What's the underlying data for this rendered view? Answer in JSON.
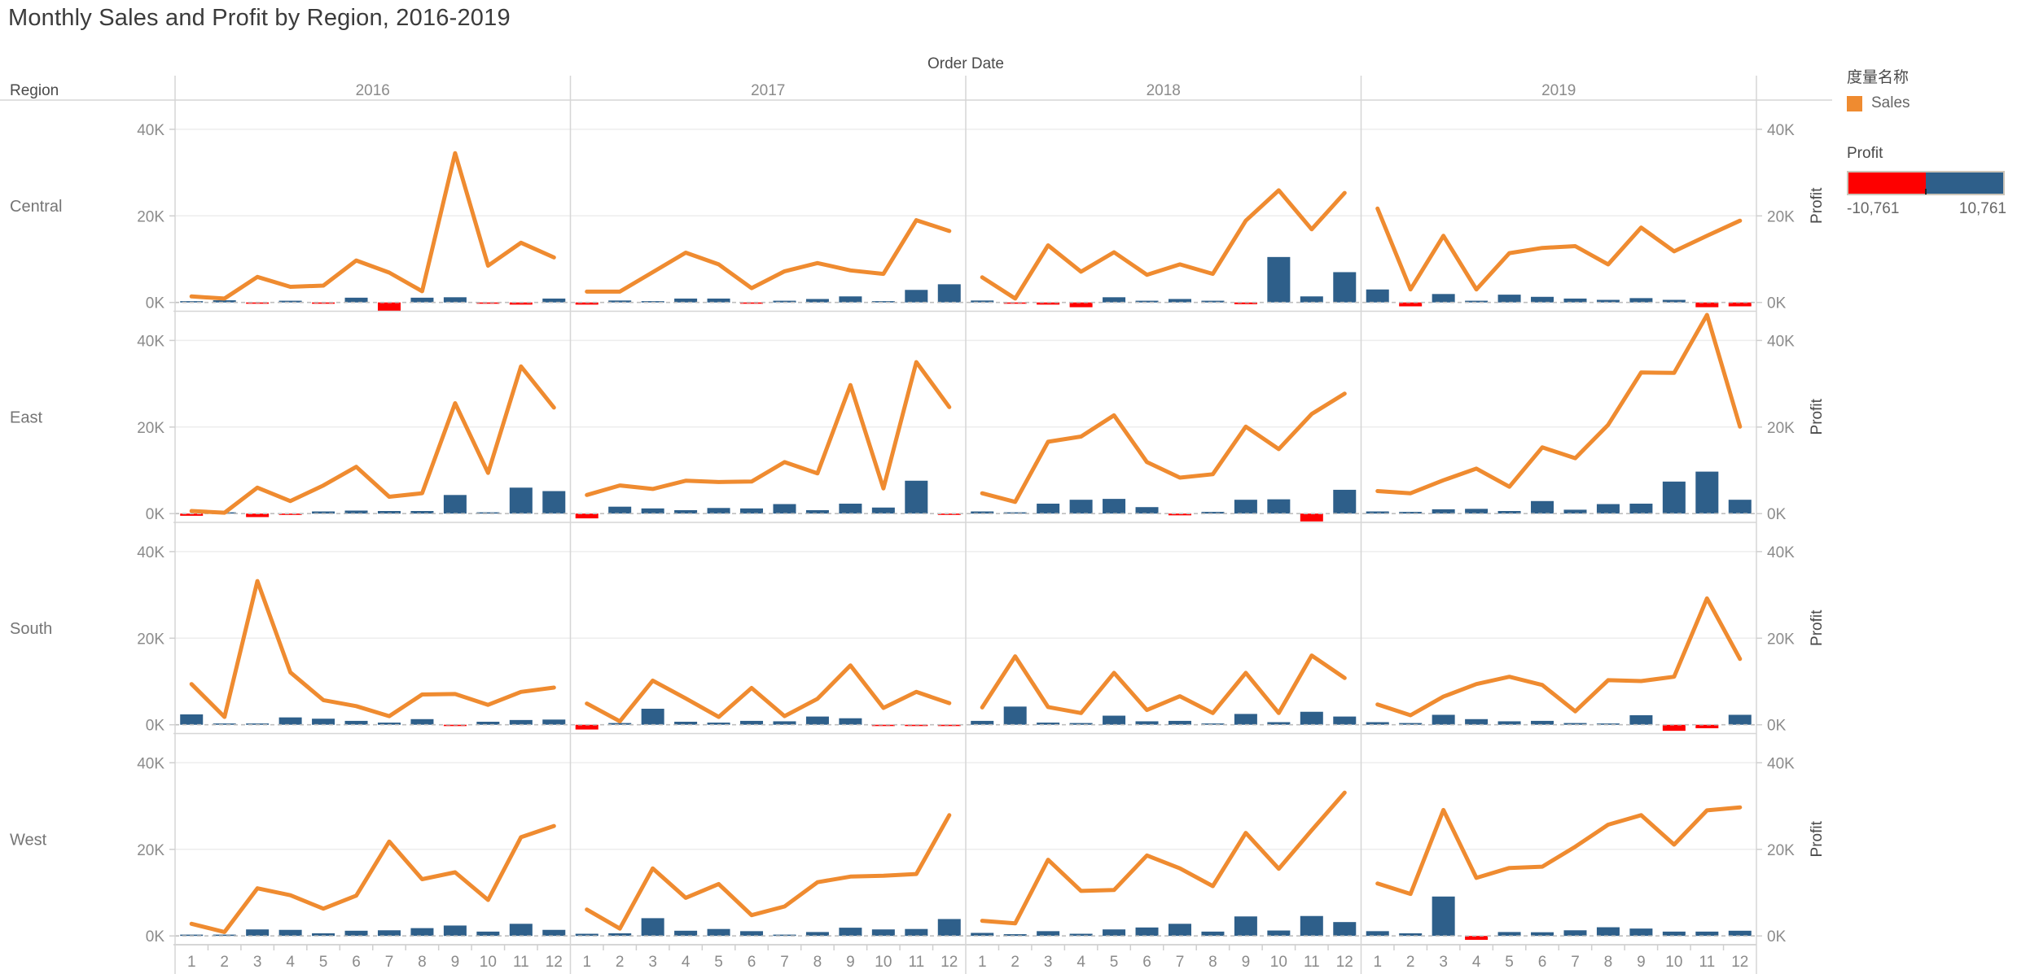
{
  "title": "Monthly Sales and Profit by Region, 2016-2019",
  "legend": {
    "measure_names_title": "度量名称",
    "sales_label": "Sales",
    "profit_title": "Profit",
    "profit_min_label": "-10,761",
    "profit_max_label": "10,761"
  },
  "colors": {
    "sales_line": "#ef8b30",
    "profit_positive": "#2e5f8a",
    "profit_negative": "#fe0000",
    "axis_text": "#8b8b8b",
    "header_text": "#4a4a4a",
    "region_text": "#757575",
    "border": "#d6d6d6",
    "gridline": "#ededed",
    "zero_line": "#bfbfbf"
  },
  "chart_data": {
    "type": "line+bar small multiples (Tableau style)",
    "x_axis_title": "Order Date",
    "row_axis_title": "Region",
    "right_axis_title": "Profit",
    "col_headers": [
      "2016",
      "2017",
      "2018",
      "2019"
    ],
    "row_headers": [
      "Central",
      "East",
      "South",
      "West"
    ],
    "month_labels": [
      "1",
      "2",
      "3",
      "4",
      "5",
      "6",
      "7",
      "8",
      "9",
      "10",
      "11",
      "12"
    ],
    "y_tick_labels": [
      "0K",
      "20K",
      "40K"
    ],
    "y_ticks_k": [
      0,
      20,
      40
    ],
    "ylim_k": [
      -2.03,
      46.75
    ],
    "legend_position": "top-right",
    "grid": "light horizontal at 20K/40K, dashed zero line",
    "units": "values in thousands (K)",
    "cells": [
      {
        "region": "Central",
        "year": "2016",
        "sales_k": [
          1.4,
          0.9,
          5.9,
          3.6,
          3.9,
          9.7,
          6.9,
          2.6,
          34.5,
          8.5,
          13.8,
          10.4
        ],
        "profit_k": [
          0.3,
          0.5,
          -0.2,
          0.4,
          -0.15,
          1.1,
          -2.5,
          1.1,
          1.2,
          -0.3,
          -0.5,
          0.9
        ]
      },
      {
        "region": "Central",
        "year": "2017",
        "sales_k": [
          2.5,
          2.5,
          7.0,
          11.5,
          8.8,
          3.3,
          7.2,
          9.1,
          7.4,
          6.6,
          19.0,
          16.5
        ],
        "profit_k": [
          -0.5,
          0.45,
          0.3,
          0.9,
          0.9,
          -0.1,
          0.4,
          0.8,
          1.4,
          0.3,
          2.9,
          4.2
        ]
      },
      {
        "region": "Central",
        "year": "2018",
        "sales_k": [
          5.8,
          0.9,
          13.2,
          7.1,
          11.6,
          6.4,
          8.8,
          6.6,
          18.9,
          25.9,
          16.9,
          25.3
        ],
        "profit_k": [
          0.45,
          -0.2,
          -0.5,
          -1.1,
          1.2,
          0.4,
          0.8,
          0.4,
          -0.4,
          10.5,
          1.4,
          7.0
        ]
      },
      {
        "region": "Central",
        "year": "2019",
        "sales_k": [
          21.7,
          3.0,
          15.4,
          3.0,
          11.4,
          12.6,
          13.0,
          8.8,
          17.3,
          11.8,
          15.4,
          18.9
        ],
        "profit_k": [
          3.0,
          -0.9,
          1.95,
          0.4,
          1.8,
          1.3,
          0.9,
          0.6,
          1.0,
          0.6,
          -1.1,
          -0.9
        ]
      },
      {
        "region": "East",
        "year": "2016",
        "sales_k": [
          0.6,
          0.2,
          6.0,
          2.9,
          6.5,
          10.8,
          3.9,
          4.7,
          25.5,
          9.4,
          34.0,
          24.5
        ],
        "profit_k": [
          -0.5,
          0.2,
          -0.8,
          -0.3,
          0.5,
          0.7,
          0.6,
          0.6,
          4.3,
          0.15,
          6.0,
          5.2
        ]
      },
      {
        "region": "East",
        "year": "2017",
        "sales_k": [
          4.3,
          6.5,
          5.7,
          7.6,
          7.3,
          7.4,
          11.9,
          9.3,
          29.7,
          5.8,
          35.0,
          24.6
        ],
        "profit_k": [
          -1.1,
          1.6,
          1.2,
          0.8,
          1.3,
          1.2,
          2.2,
          0.8,
          2.3,
          1.4,
          7.6,
          -0.3
        ]
      },
      {
        "region": "East",
        "year": "2018",
        "sales_k": [
          4.7,
          2.7,
          16.6,
          17.8,
          22.7,
          11.9,
          8.3,
          9.1,
          20.1,
          14.9,
          23.0,
          27.7
        ],
        "profit_k": [
          0.5,
          0.3,
          2.3,
          3.2,
          3.4,
          1.5,
          -0.4,
          0.4,
          3.2,
          3.3,
          -1.8,
          5.5
        ]
      },
      {
        "region": "East",
        "year": "2019",
        "sales_k": [
          5.2,
          4.7,
          7.7,
          10.4,
          6.2,
          15.3,
          12.8,
          20.5,
          32.6,
          32.5,
          45.9,
          20.1
        ],
        "profit_k": [
          0.5,
          0.4,
          1.0,
          1.1,
          0.6,
          2.9,
          0.9,
          2.2,
          2.3,
          7.4,
          9.7,
          3.2
        ]
      },
      {
        "region": "South",
        "year": "2016",
        "sales_k": [
          9.4,
          1.8,
          33.2,
          12.1,
          5.7,
          4.3,
          2.0,
          7.0,
          7.1,
          4.6,
          7.6,
          8.6
        ],
        "profit_k": [
          2.4,
          0.3,
          0.3,
          1.7,
          1.4,
          0.9,
          0.5,
          1.3,
          -0.2,
          0.7,
          1.1,
          1.2
        ]
      },
      {
        "region": "South",
        "year": "2017",
        "sales_k": [
          4.9,
          0.8,
          10.2,
          6.1,
          1.8,
          8.5,
          2.0,
          6.0,
          13.7,
          3.9,
          7.6,
          5.0
        ],
        "profit_k": [
          -1.1,
          0.4,
          3.7,
          0.7,
          0.5,
          0.9,
          0.8,
          1.9,
          1.5,
          -0.3,
          -0.2,
          -0.2
        ]
      },
      {
        "region": "South",
        "year": "2018",
        "sales_k": [
          4.0,
          15.8,
          4.1,
          2.7,
          12.0,
          3.4,
          6.6,
          2.7,
          12.0,
          2.7,
          16.0,
          10.8
        ],
        "profit_k": [
          0.9,
          4.2,
          0.5,
          0.4,
          2.1,
          0.8,
          0.9,
          0.3,
          2.5,
          0.6,
          3.0,
          1.9
        ]
      },
      {
        "region": "South",
        "year": "2019",
        "sales_k": [
          4.7,
          2.2,
          6.5,
          9.4,
          11.1,
          9.2,
          3.1,
          10.3,
          10.1,
          11.1,
          29.2,
          15.2
        ],
        "profit_k": [
          0.6,
          0.4,
          2.3,
          1.3,
          0.8,
          0.9,
          0.4,
          0.3,
          2.2,
          -1.4,
          -0.8,
          2.3
        ]
      },
      {
        "region": "West",
        "year": "2016",
        "sales_k": [
          2.8,
          0.9,
          11.0,
          9.4,
          6.3,
          9.3,
          21.8,
          13.1,
          14.7,
          8.3,
          22.8,
          25.4
        ],
        "profit_k": [
          0.25,
          0.1,
          1.5,
          1.4,
          0.6,
          1.2,
          1.3,
          1.8,
          2.4,
          1.0,
          2.8,
          1.4
        ]
      },
      {
        "region": "West",
        "year": "2017",
        "sales_k": [
          6.1,
          1.7,
          15.6,
          8.8,
          12.0,
          4.8,
          6.8,
          12.4,
          13.7,
          13.9,
          14.3,
          27.9
        ],
        "profit_k": [
          0.5,
          0.6,
          4.1,
          1.2,
          1.6,
          1.1,
          0.2,
          0.9,
          1.9,
          1.5,
          1.6,
          3.9
        ]
      },
      {
        "region": "West",
        "year": "2018",
        "sales_k": [
          3.5,
          2.9,
          17.6,
          10.4,
          10.6,
          18.6,
          15.6,
          11.5,
          23.8,
          15.5,
          24.4,
          33.1
        ],
        "profit_k": [
          0.7,
          0.4,
          1.1,
          0.5,
          1.5,
          1.95,
          2.8,
          1.0,
          4.5,
          1.25,
          4.6,
          3.2
        ]
      },
      {
        "region": "West",
        "year": "2019",
        "sales_k": [
          12.1,
          9.7,
          29.1,
          13.4,
          15.7,
          16.0,
          20.6,
          25.7,
          27.9,
          21.1,
          29.0,
          29.7
        ],
        "profit_k": [
          1.1,
          0.6,
          9.1,
          -0.9,
          0.9,
          0.85,
          1.3,
          2.0,
          1.7,
          1.0,
          1.0,
          1.2
        ]
      }
    ]
  }
}
